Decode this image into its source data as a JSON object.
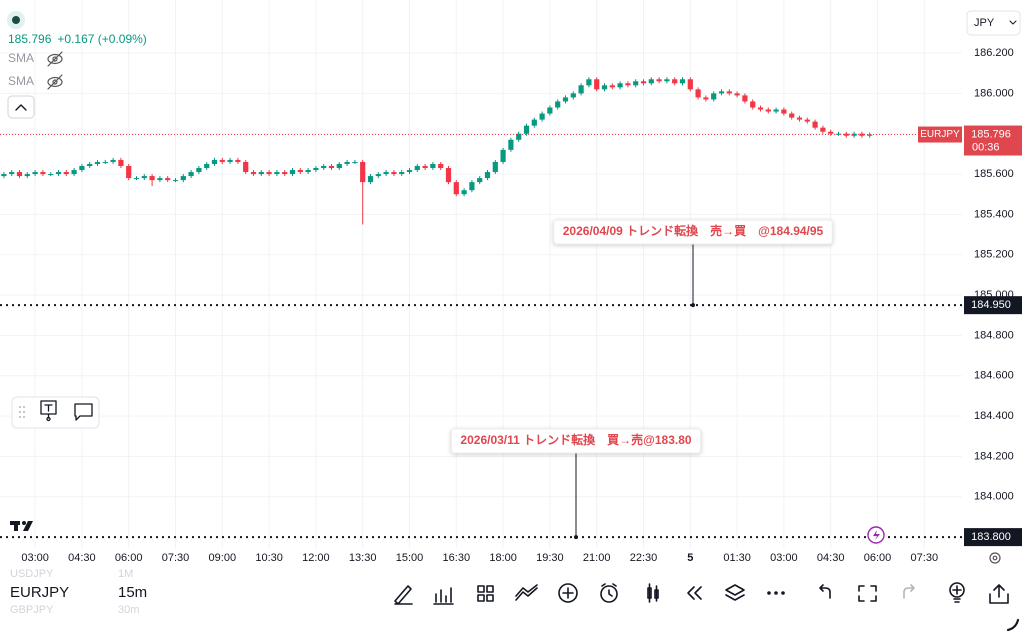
{
  "chart_data": {
    "type": "candlestick",
    "symbol": "EURJPY",
    "currency": "JPY",
    "last_price": 185.796,
    "change": "+0.167 (+0.09%)",
    "countdown": "00:36",
    "indicators": [
      "SMA",
      "SMA"
    ],
    "up_color": "#089981",
    "down_color": "#f23645",
    "grid": true,
    "ylim": [
      183.746,
      186.463
    ],
    "yticks": [
      {
        "value": 184.0,
        "label": "184.000"
      },
      {
        "value": 184.2,
        "label": "184.200"
      },
      {
        "value": 184.4,
        "label": "184.400"
      },
      {
        "value": 184.6,
        "label": "184.600"
      },
      {
        "value": 184.8,
        "label": "184.800"
      },
      {
        "value": 185.0,
        "label": "185.000"
      },
      {
        "value": 185.2,
        "label": "185.200"
      },
      {
        "value": 185.4,
        "label": "185.400"
      },
      {
        "value": 185.6,
        "label": "185.600"
      },
      {
        "value": 185.8,
        "label": "185.800"
      },
      {
        "value": 186.0,
        "label": "186.000"
      },
      {
        "value": 186.2,
        "label": "186.200"
      }
    ],
    "horizontal_lines": [
      {
        "value": 184.95,
        "label": "184.950",
        "note": "2026/04/09  トレンド転換　売→買　@184.94/95"
      },
      {
        "value": 183.8,
        "label": "183.800",
        "note": "2026/03/11 トレンド転換　買→売@183.80"
      }
    ],
    "categories": [
      null,
      null,
      null,
      null,
      "03:00",
      null,
      null,
      null,
      null,
      null,
      "04:30",
      null,
      null,
      null,
      null,
      null,
      "06:00",
      null,
      null,
      null,
      null,
      null,
      "07:30",
      null,
      null,
      null,
      null,
      null,
      "09:00",
      null,
      null,
      null,
      null,
      null,
      "10:30",
      null,
      null,
      null,
      null,
      null,
      "12:00",
      null,
      null,
      null,
      null,
      null,
      "13:30",
      null,
      null,
      null,
      null,
      null,
      "15:00",
      null,
      null,
      null,
      null,
      null,
      "16:30",
      null,
      null,
      null,
      null,
      null,
      "18:00",
      null,
      null,
      null,
      null,
      null,
      "19:30",
      null,
      null,
      null,
      null,
      null,
      "21:00",
      null,
      null,
      null,
      null,
      null,
      "22:30",
      null,
      null,
      null,
      null,
      null,
      "5",
      null,
      null,
      null,
      null,
      null,
      "01:30",
      null,
      null,
      null,
      null,
      null,
      "03:00",
      null,
      null,
      null,
      null,
      null,
      "04:30",
      null,
      null,
      null,
      null,
      null,
      "06:00",
      null,
      null,
      null,
      null,
      null,
      "07:30",
      null,
      null,
      null,
      null
    ],
    "open": [
      185.59,
      185.6,
      185.61,
      185.59,
      185.6,
      185.61,
      185.6,
      185.6,
      185.61,
      185.6,
      185.62,
      185.64,
      185.65,
      185.66,
      185.66,
      185.67,
      185.64,
      185.58,
      185.58,
      185.59,
      185.57,
      185.58,
      185.57,
      185.57,
      185.59,
      185.61,
      185.63,
      185.65,
      185.67,
      185.66,
      185.67,
      185.66,
      185.61,
      185.6,
      185.61,
      185.6,
      185.61,
      185.6,
      185.62,
      185.61,
      185.62,
      185.63,
      185.64,
      185.63,
      185.65,
      185.66,
      185.66,
      185.56,
      185.59,
      185.6,
      185.61,
      185.6,
      185.61,
      185.62,
      185.64,
      185.63,
      185.65,
      185.63,
      185.56,
      185.5,
      185.52,
      185.56,
      185.58,
      185.61,
      185.66,
      185.72,
      185.77,
      185.8,
      185.84,
      185.87,
      185.9,
      185.93,
      185.96,
      185.98,
      186.0,
      186.04,
      186.07,
      186.02,
      186.04,
      186.03,
      186.05,
      186.04,
      186.06,
      186.05,
      186.07,
      186.06,
      186.07,
      186.05,
      186.07,
      186.02,
      185.98,
      185.97,
      186.0,
      186.01,
      186.0,
      185.99,
      185.96,
      185.93,
      185.92,
      185.91,
      185.92,
      185.9,
      185.88,
      185.87,
      185.86,
      185.83,
      185.81,
      185.8,
      185.8,
      185.79,
      185.8,
      185.79,
      null,
      null,
      null,
      null,
      null,
      null,
      null,
      null,
      null,
      null,
      null
    ],
    "high": [
      185.61,
      185.62,
      185.62,
      185.61,
      185.62,
      185.62,
      185.61,
      185.62,
      185.62,
      185.63,
      185.65,
      185.66,
      185.67,
      185.67,
      185.68,
      185.68,
      185.65,
      185.59,
      185.6,
      185.6,
      185.59,
      185.59,
      185.58,
      185.6,
      185.62,
      185.64,
      185.66,
      185.68,
      185.68,
      185.68,
      185.68,
      185.67,
      185.62,
      185.62,
      185.62,
      185.62,
      185.62,
      185.63,
      185.63,
      185.63,
      185.64,
      185.65,
      185.65,
      185.66,
      185.67,
      185.67,
      185.67,
      185.6,
      185.61,
      185.62,
      185.62,
      185.62,
      185.63,
      185.65,
      185.65,
      185.66,
      185.66,
      185.64,
      185.57,
      185.53,
      185.57,
      185.59,
      185.62,
      185.67,
      185.73,
      185.78,
      185.81,
      185.85,
      185.88,
      185.91,
      185.94,
      185.97,
      185.99,
      186.01,
      186.05,
      186.08,
      186.08,
      186.05,
      186.05,
      186.06,
      186.06,
      186.07,
      186.07,
      186.08,
      186.08,
      186.08,
      186.08,
      186.08,
      186.08,
      186.03,
      185.99,
      186.01,
      186.02,
      186.02,
      186.01,
      186.0,
      185.97,
      185.94,
      185.93,
      185.93,
      185.93,
      185.91,
      185.89,
      185.88,
      185.87,
      185.84,
      185.82,
      185.81,
      185.81,
      185.81,
      185.81,
      185.806,
      null,
      null,
      null,
      null,
      null,
      null,
      null,
      null,
      null,
      null,
      null
    ],
    "low": [
      185.58,
      185.59,
      185.58,
      185.58,
      185.59,
      185.59,
      185.59,
      185.59,
      185.59,
      185.59,
      185.61,
      185.63,
      185.64,
      185.65,
      185.65,
      185.63,
      185.57,
      185.57,
      185.57,
      185.54,
      185.56,
      185.56,
      185.56,
      185.56,
      185.58,
      185.6,
      185.62,
      185.64,
      185.65,
      185.65,
      185.65,
      185.6,
      185.59,
      185.59,
      185.59,
      185.59,
      185.59,
      185.59,
      185.6,
      185.6,
      185.61,
      185.62,
      185.62,
      185.62,
      185.64,
      185.65,
      185.35,
      185.55,
      185.58,
      185.59,
      185.59,
      185.59,
      185.6,
      185.61,
      185.62,
      185.62,
      185.62,
      185.55,
      185.49,
      185.49,
      185.51,
      185.55,
      185.57,
      185.6,
      185.65,
      185.71,
      185.76,
      185.79,
      185.83,
      185.86,
      185.89,
      185.92,
      185.95,
      185.97,
      185.99,
      186.03,
      186.01,
      186.01,
      186.02,
      186.02,
      186.03,
      186.03,
      186.04,
      186.04,
      186.05,
      186.05,
      186.04,
      186.04,
      186.01,
      185.97,
      185.96,
      185.96,
      185.99,
      185.99,
      185.98,
      185.95,
      185.92,
      185.91,
      185.9,
      185.9,
      185.89,
      185.87,
      185.86,
      185.85,
      185.82,
      185.8,
      185.79,
      185.79,
      185.78,
      185.78,
      185.78,
      185.78,
      null,
      null,
      null,
      null,
      null,
      null,
      null,
      null,
      null,
      null,
      null
    ],
    "close": [
      185.6,
      185.61,
      185.59,
      185.6,
      185.61,
      185.6,
      185.6,
      185.61,
      185.6,
      185.62,
      185.64,
      185.65,
      185.66,
      185.66,
      185.67,
      185.64,
      185.58,
      185.58,
      185.59,
      185.57,
      185.58,
      185.57,
      185.57,
      185.59,
      185.61,
      185.63,
      185.65,
      185.67,
      185.66,
      185.67,
      185.66,
      185.61,
      185.6,
      185.61,
      185.6,
      185.61,
      185.6,
      185.62,
      185.61,
      185.62,
      185.63,
      185.64,
      185.63,
      185.65,
      185.66,
      185.66,
      185.56,
      185.59,
      185.6,
      185.61,
      185.6,
      185.61,
      185.62,
      185.64,
      185.63,
      185.65,
      185.63,
      185.56,
      185.5,
      185.52,
      185.56,
      185.58,
      185.61,
      185.66,
      185.72,
      185.77,
      185.8,
      185.84,
      185.87,
      185.9,
      185.93,
      185.96,
      185.98,
      186.0,
      186.04,
      186.07,
      186.02,
      186.04,
      186.03,
      186.05,
      186.04,
      186.06,
      186.05,
      186.07,
      186.06,
      186.07,
      186.05,
      186.07,
      186.02,
      185.98,
      185.97,
      186.0,
      186.01,
      186.0,
      185.99,
      185.96,
      185.93,
      185.92,
      185.91,
      185.92,
      185.9,
      185.88,
      185.87,
      185.86,
      185.83,
      185.81,
      185.8,
      185.8,
      185.79,
      185.8,
      185.79,
      185.796,
      null,
      null,
      null,
      null,
      null,
      null,
      null,
      null,
      null,
      null,
      null
    ],
    "watchlist": [
      {
        "symbol": "USDJPY",
        "interval": "1M"
      },
      {
        "symbol": "EURJPY",
        "interval": "15m"
      },
      {
        "symbol": "GBPJPY",
        "interval": "30m"
      }
    ]
  }
}
